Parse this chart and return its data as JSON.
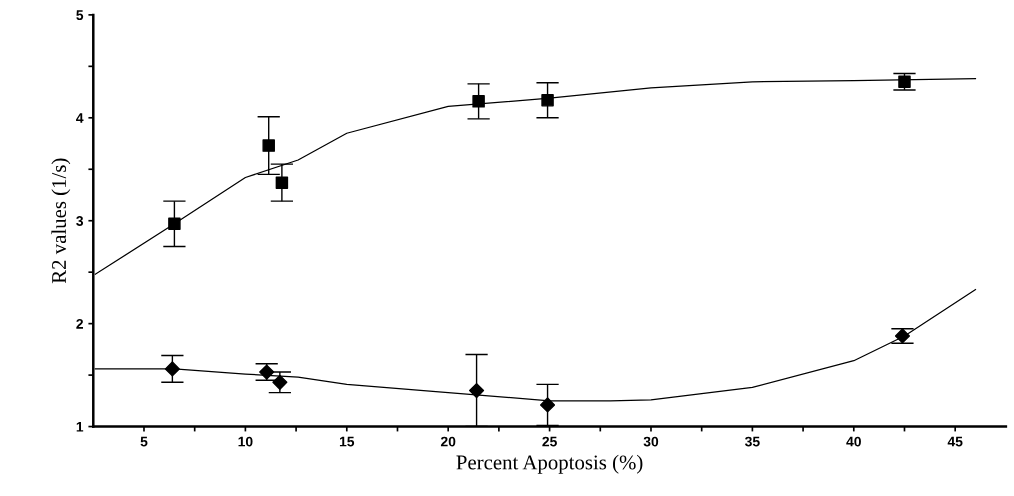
{
  "chart_data": {
    "type": "scatter",
    "xlabel": "Percent Apoptosis (%)",
    "ylabel": "R2 values (1/s)",
    "xlim": [
      2.5,
      47.5
    ],
    "ylim": [
      1,
      5
    ],
    "xticks": [
      5,
      {
        "value": 7.5,
        "label": null
      },
      10,
      {
        "value": 12.5,
        "label": null
      },
      15,
      {
        "value": 17.5,
        "label": null
      },
      20,
      {
        "value": 22.5,
        "label": null
      },
      25,
      {
        "value": 27.5,
        "label": null
      },
      30,
      {
        "value": 32.5,
        "label": null
      },
      35,
      {
        "value": 37.5,
        "label": null
      },
      40,
      {
        "value": 42.5,
        "label": null
      },
      45
    ],
    "yticks": [
      1,
      {
        "value": 1.5,
        "label": null
      },
      2,
      {
        "value": 2.5,
        "label": null
      },
      3,
      {
        "value": 3.5,
        "label": null
      },
      4,
      {
        "value": 4.5,
        "label": null
      },
      5
    ],
    "grid": false,
    "legend": false,
    "series": [
      {
        "marker": "square",
        "color": "#000000",
        "x": [
          6.5,
          11.15,
          11.8,
          21.5,
          24.9,
          42.5
        ],
        "values": [
          2.97,
          3.73,
          3.37,
          4.16,
          4.17,
          4.35
        ],
        "errors": [
          0.22,
          0.28,
          0.18,
          0.17,
          0.17,
          0.08
        ]
      },
      {
        "marker": "diamond",
        "color": "#000000",
        "x": [
          6.4,
          11.05,
          11.7,
          21.4,
          24.9,
          42.4
        ],
        "values": [
          1.56,
          1.53,
          1.43,
          1.35,
          1.21,
          1.88
        ],
        "errors": [
          0.13,
          0.08,
          0.1,
          0.35,
          0.2,
          0.07
        ]
      },
      {
        "type": "line",
        "line_style": "solid",
        "color": "#000000",
        "x": [
          2.6,
          6.5,
          10,
          12.6,
          15,
          20,
          25,
          30,
          35,
          40,
          46
        ],
        "values": [
          2.48,
          2.97,
          3.42,
          3.59,
          3.85,
          4.11,
          4.19,
          4.29,
          4.35,
          4.36,
          4.38
        ]
      },
      {
        "type": "line",
        "line_style": "solid",
        "color": "#000000",
        "x": [
          2.6,
          6.5,
          10,
          12.6,
          15,
          20,
          25,
          28,
          30,
          35,
          40,
          42.5,
          46
        ],
        "values": [
          1.56,
          1.56,
          1.51,
          1.48,
          1.41,
          1.33,
          1.25,
          1.25,
          1.26,
          1.38,
          1.64,
          1.88,
          2.33
        ]
      }
    ]
  }
}
